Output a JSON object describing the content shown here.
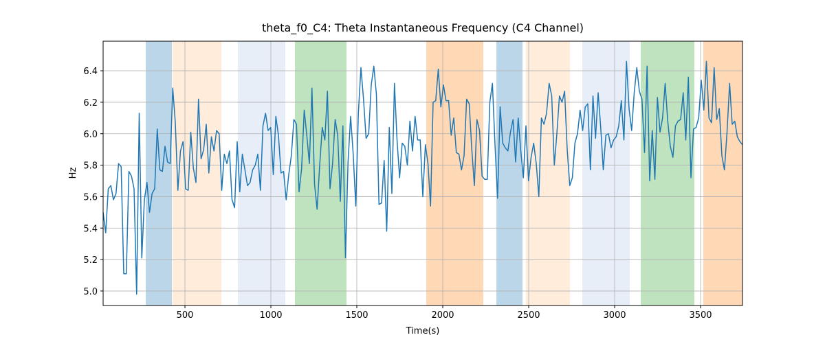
{
  "chart_data": {
    "type": "line",
    "title": "theta_f0_C4: Theta Instantaneous Frequency (C4 Channel)",
    "x_label": "Time(s)",
    "y_label": "Hz",
    "xlim": [
      24,
      3744
    ],
    "ylim": [
      4.908,
      6.588
    ],
    "xticks": [
      500,
      1000,
      1500,
      2000,
      2500,
      3000,
      3500
    ],
    "yticks": [
      {
        "value": 5,
        "label": "5.0"
      },
      5.2,
      5.4,
      5.6,
      5.8,
      {
        "value": 6,
        "label": "6.0"
      },
      6.2,
      6.4
    ],
    "grid": true,
    "spans": [
      {
        "start": 272,
        "end": 424,
        "color": "#1f77b4",
        "alpha": 0.3
      },
      {
        "start": 428,
        "end": 712,
        "color": "#ff7f0e",
        "alpha": 0.15
      },
      {
        "start": 808,
        "end": 1084,
        "color": "#aec7e8",
        "alpha": 0.3
      },
      {
        "start": 1140,
        "end": 1440,
        "color": "#2ca02c",
        "alpha": 0.3
      },
      {
        "start": 1904,
        "end": 2236,
        "color": "#ff7f0e",
        "alpha": 0.3
      },
      {
        "start": 2312,
        "end": 2464,
        "color": "#1f77b4",
        "alpha": 0.3
      },
      {
        "start": 2484,
        "end": 2740,
        "color": "#ff7f0e",
        "alpha": 0.15
      },
      {
        "start": 2812,
        "end": 3088,
        "color": "#aec7e8",
        "alpha": 0.3
      },
      {
        "start": 3152,
        "end": 3464,
        "color": "#2ca02c",
        "alpha": 0.3
      },
      {
        "start": 3516,
        "end": 3744,
        "color": "#ff7f0e",
        "alpha": 0.3
      }
    ],
    "x": [
      24,
      39,
      54,
      69,
      84,
      99,
      114,
      129,
      144,
      159,
      174,
      189,
      204,
      219,
      234,
      249,
      264,
      279,
      294,
      309,
      324,
      339,
      354,
      369,
      384,
      399,
      414,
      429,
      444,
      459,
      474,
      489,
      504,
      519,
      534,
      549,
      564,
      579,
      594,
      609,
      624,
      639,
      654,
      669,
      684,
      699,
      714,
      729,
      744,
      759,
      774,
      789,
      804,
      819,
      834,
      849,
      864,
      879,
      894,
      909,
      924,
      939,
      954,
      969,
      984,
      999,
      1014,
      1029,
      1044,
      1059,
      1074,
      1089,
      1104,
      1119,
      1134,
      1149,
      1164,
      1179,
      1194,
      1209,
      1224,
      1239,
      1254,
      1269,
      1284,
      1299,
      1314,
      1329,
      1344,
      1359,
      1374,
      1389,
      1404,
      1419,
      1434,
      1449,
      1464,
      1479,
      1494,
      1509,
      1524,
      1539,
      1554,
      1569,
      1584,
      1599,
      1614,
      1629,
      1644,
      1659,
      1674,
      1689,
      1704,
      1719,
      1734,
      1749,
      1764,
      1779,
      1794,
      1809,
      1824,
      1839,
      1854,
      1869,
      1884,
      1899,
      1914,
      1929,
      1944,
      1959,
      1974,
      1989,
      2004,
      2019,
      2034,
      2049,
      2064,
      2079,
      2094,
      2109,
      2124,
      2139,
      2154,
      2169,
      2184,
      2199,
      2214,
      2229,
      2244,
      2259,
      2274,
      2289,
      2304,
      2319,
      2334,
      2349,
      2364,
      2379,
      2394,
      2409,
      2424,
      2439,
      2454,
      2469,
      2484,
      2499,
      2514,
      2529,
      2544,
      2559,
      2574,
      2589,
      2604,
      2619,
      2634,
      2649,
      2664,
      2679,
      2694,
      2709,
      2724,
      2739,
      2754,
      2769,
      2784,
      2799,
      2814,
      2829,
      2844,
      2859,
      2874,
      2889,
      2904,
      2919,
      2934,
      2949,
      2964,
      2979,
      2994,
      3009,
      3024,
      3039,
      3054,
      3069,
      3084,
      3099,
      3114,
      3129,
      3144,
      3159,
      3174,
      3189,
      3204,
      3219,
      3234,
      3249,
      3264,
      3279,
      3294,
      3309,
      3324,
      3339,
      3354,
      3369,
      3384,
      3399,
      3414,
      3429,
      3444,
      3459,
      3474,
      3489,
      3504,
      3519,
      3534,
      3549,
      3564,
      3579,
      3594,
      3609,
      3624,
      3639,
      3654,
      3669,
      3684,
      3699,
      3714,
      3729,
      3744
    ],
    "series": [
      {
        "name": "theta_f0_C4",
        "color": "#1f77b4",
        "values": [
          5.5,
          5.37,
          5.65,
          5.67,
          5.58,
          5.62,
          5.81,
          5.79,
          5.11,
          5.11,
          5.76,
          5.73,
          5.65,
          4.98,
          6.13,
          5.21,
          5.58,
          5.69,
          5.5,
          5.62,
          5.65,
          6.03,
          5.77,
          5.76,
          5.92,
          5.82,
          5.81,
          6.29,
          6.07,
          5.64,
          5.89,
          5.95,
          5.65,
          5.64,
          6.01,
          5.78,
          5.69,
          6.22,
          5.84,
          5.9,
          6.06,
          5.75,
          5.98,
          5.89,
          6.02,
          6.0,
          5.64,
          5.87,
          5.81,
          5.89,
          5.58,
          5.53,
          5.95,
          5.63,
          5.87,
          5.77,
          5.67,
          5.69,
          5.77,
          5.8,
          5.87,
          5.64,
          6.05,
          6.13,
          6.02,
          6.04,
          5.74,
          6.11,
          5.99,
          5.75,
          5.76,
          5.58,
          5.74,
          5.86,
          6.09,
          6.06,
          5.63,
          5.78,
          6.15,
          5.99,
          5.81,
          6.29,
          5.68,
          5.52,
          5.8,
          6.04,
          5.96,
          6.27,
          5.65,
          5.81,
          6.09,
          5.99,
          5.57,
          6.05,
          5.21,
          5.82,
          6.11,
          5.87,
          5.54,
          6.13,
          6.42,
          6.22,
          5.97,
          6.0,
          6.31,
          6.43,
          6.25,
          5.55,
          5.56,
          5.83,
          5.38,
          6.04,
          5.62,
          6.32,
          5.96,
          5.72,
          5.94,
          5.92,
          5.8,
          6.08,
          5.89,
          6.11,
          5.96,
          5.96,
          5.6,
          5.93,
          5.81,
          5.54,
          6.2,
          6.21,
          6.41,
          6.17,
          6.31,
          6.21,
          6.21,
          5.99,
          6.1,
          5.88,
          5.87,
          5.77,
          5.86,
          6.22,
          6.19,
          5.9,
          5.67,
          6.09,
          6.02,
          5.73,
          5.71,
          5.71,
          6.2,
          6.32,
          5.93,
          5.59,
          6.17,
          5.94,
          5.91,
          5.89,
          6.01,
          6.09,
          5.82,
          6.1,
          5.89,
          5.72,
          6.05,
          5.7,
          5.85,
          5.94,
          5.81,
          5.6,
          6.1,
          6.06,
          6.13,
          6.32,
          6.24,
          5.8,
          6.0,
          6.24,
          6.2,
          6.27,
          5.9,
          5.67,
          5.72,
          5.94,
          6.0,
          6.15,
          6.02,
          6.17,
          6.19,
          5.77,
          6.24,
          5.97,
          6.26,
          6.04,
          5.77,
          5.99,
          6.0,
          5.91,
          5.96,
          5.98,
          6.05,
          6.21,
          5.96,
          6.46,
          6.16,
          6.02,
          6.26,
          6.42,
          6.27,
          6.22,
          5.88,
          6.43,
          5.7,
          6.02,
          5.71,
          6.23,
          6.01,
          6.1,
          6.32,
          6.08,
          5.92,
          5.85,
          6.05,
          6.08,
          6.09,
          6.26,
          5.96,
          6.36,
          5.72,
          6.03,
          6.04,
          6.1,
          6.34,
          6.15,
          6.46,
          6.1,
          6.07,
          6.42,
          6.09,
          6.16,
          5.86,
          5.77,
          6.01,
          6.32,
          6.06,
          6.08,
          5.98,
          5.95,
          5.93
        ]
      }
    ]
  }
}
